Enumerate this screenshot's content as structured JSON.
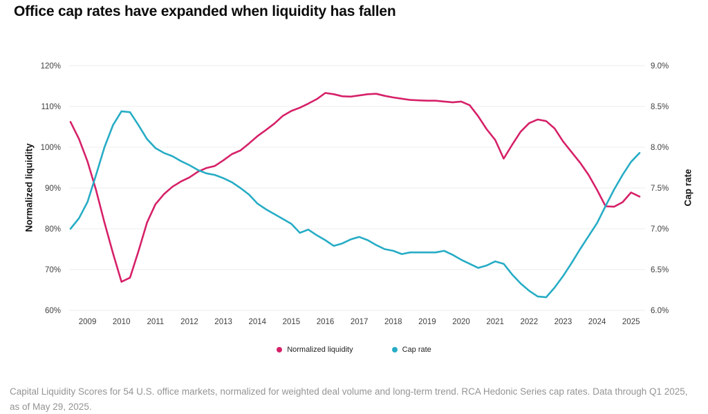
{
  "title": "Office cap rates have expanded when liquidity has fallen",
  "footer": "Capital Liquidity Scores for 54 U.S. office markets, normalized for weighted deal volume and long-term trend. RCA Hedonic Series cap rates. Data through Q1 2025, as of May 29, 2025.",
  "colors": {
    "liquidity": "#d62068",
    "cap_rate": "#26acc5",
    "gridline": "#ededed",
    "tick_text": "#3f3f3f",
    "background": "#ffffff"
  },
  "legend": {
    "items": [
      {
        "label": "Normalized liquidity",
        "color": "#d62068"
      },
      {
        "label": "Cap rate",
        "color": "#26acc5"
      }
    ]
  },
  "chart_data": {
    "type": "line",
    "title": "Office cap rates have expanded when liquidity has fallen",
    "x_start": 2008.5,
    "x_step": 0.25,
    "x_tick_labels": [
      "2009",
      "2010",
      "2011",
      "2012",
      "2013",
      "2014",
      "2015",
      "2016",
      "2017",
      "2018",
      "2019",
      "2020",
      "2021",
      "2022",
      "2023",
      "2024",
      "2025"
    ],
    "grid": "horizontal-only",
    "legend_position": "bottom-center",
    "left_axis": {
      "label": "Normalized liquidity",
      "min": 60,
      "max": 120,
      "ticks": [
        "120%",
        "110%",
        "100%",
        "90%",
        "80%",
        "70%",
        "60%"
      ]
    },
    "right_axis": {
      "label": "Cap rate",
      "min": 6.0,
      "max": 9.0,
      "ticks": [
        "9.0%",
        "8.5%",
        "8.0%",
        "7.5%",
        "7.0%",
        "6.5%",
        "6.0%"
      ]
    },
    "series": [
      {
        "name": "Normalized liquidity",
        "axis": "left",
        "color": "#d62068",
        "values": [
          106.2,
          102.0,
          96.5,
          89.5,
          81.5,
          74.0,
          67.0,
          68.0,
          74.5,
          81.5,
          86.0,
          88.5,
          90.3,
          91.6,
          92.6,
          94.0,
          94.9,
          95.4,
          96.8,
          98.3,
          99.2,
          100.9,
          102.7,
          104.2,
          105.8,
          107.7,
          108.9,
          109.7,
          110.7,
          111.8,
          113.3,
          113.0,
          112.5,
          112.4,
          112.7,
          113.0,
          113.1,
          112.6,
          112.2,
          111.9,
          111.6,
          111.5,
          111.4,
          111.4,
          111.2,
          111.0,
          111.2,
          110.3,
          107.6,
          104.4,
          101.8,
          97.2,
          100.6,
          103.8,
          105.9,
          106.8,
          106.4,
          104.6,
          101.4,
          98.8,
          96.2,
          93.2,
          89.5,
          85.5,
          85.4,
          86.5,
          88.9,
          87.9
        ]
      },
      {
        "name": "Cap rate",
        "axis": "right",
        "color": "#26acc5",
        "values": [
          7.0,
          7.13,
          7.33,
          7.66,
          8.0,
          8.27,
          8.44,
          8.43,
          8.27,
          8.1,
          7.99,
          7.93,
          7.89,
          7.83,
          7.78,
          7.72,
          7.68,
          7.66,
          7.62,
          7.57,
          7.5,
          7.42,
          7.31,
          7.24,
          7.18,
          7.12,
          7.06,
          6.95,
          6.99,
          6.92,
          6.86,
          6.79,
          6.82,
          6.87,
          6.9,
          6.86,
          6.8,
          6.75,
          6.73,
          6.69,
          6.71,
          6.71,
          6.71,
          6.71,
          6.73,
          6.68,
          6.62,
          6.57,
          6.52,
          6.55,
          6.6,
          6.57,
          6.44,
          6.33,
          6.24,
          6.17,
          6.16,
          6.28,
          6.42,
          6.58,
          6.75,
          6.91,
          7.07,
          7.28,
          7.48,
          7.66,
          7.82,
          7.93
        ]
      }
    ]
  }
}
